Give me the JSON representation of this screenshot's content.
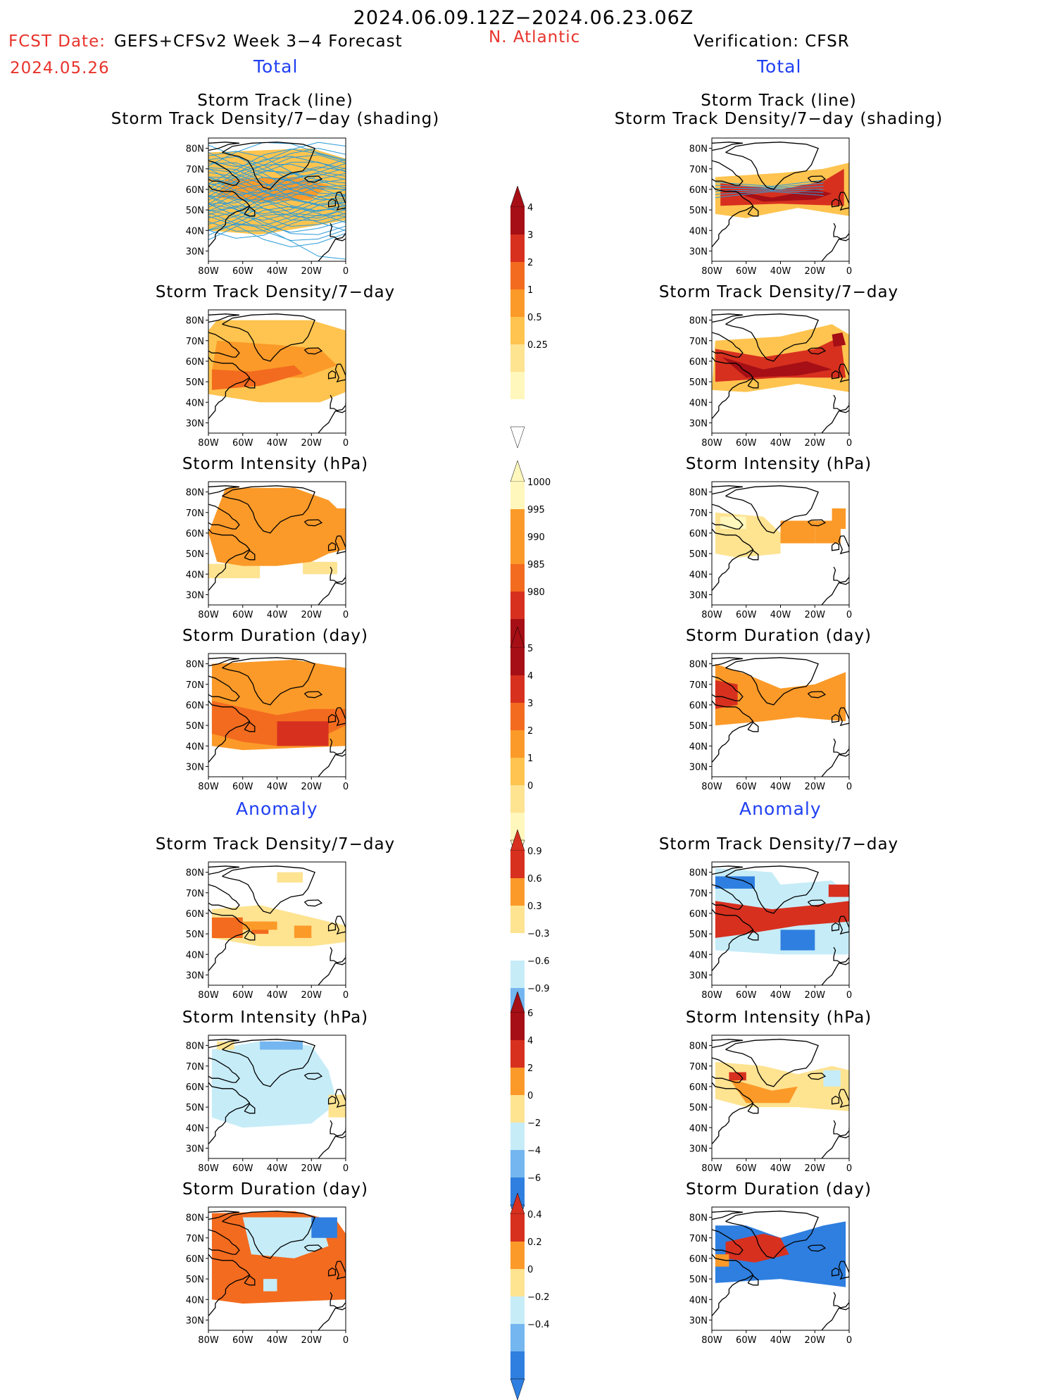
{
  "header": {
    "period": "2024.06.09.12Z−2024.06.23.06Z",
    "fcst_label": "FCST Date:",
    "fcst_model": "GEFS+CFSv2 Week 3−4 Forecast",
    "fcst_date": "2024.05.26",
    "region": "N. Atlantic",
    "verification": "Verification: CFSR",
    "total_left": "Total",
    "total_right": "Total",
    "anomaly_left": "Anomaly",
    "anomaly_right": "Anomaly"
  },
  "panel_titles": {
    "track_line": "Storm Track (line)",
    "track_shading": "Storm Track Density/7−day (shading)",
    "density": "Storm Track Density/7−day",
    "intensity": "Storm Intensity (hPa)",
    "duration": "Storm Duration (day)"
  },
  "axes": {
    "lat_ticks": [
      "80N",
      "70N",
      "60N",
      "50N",
      "40N",
      "30N"
    ],
    "lon_ticks": [
      "80W",
      "60W",
      "40W",
      "20W",
      "0"
    ]
  },
  "colorbars": {
    "density_total": [
      "4",
      "3",
      "2",
      "1",
      "0.5",
      "0.25"
    ],
    "intensity_total": [
      "1000",
      "995",
      "990",
      "985",
      "980"
    ],
    "duration_total": [
      "5",
      "4",
      "3",
      "2",
      "1",
      "0"
    ],
    "density_anom": [
      "0.9",
      "0.6",
      "0.3",
      "−0.3",
      "−0.6",
      "−0.9"
    ],
    "intensity_anom": [
      "6",
      "4",
      "2",
      "0",
      "−2",
      "−4",
      "−6"
    ],
    "duration_anom": [
      "0.4",
      "0.2",
      "0",
      "−0.2",
      "−0.4"
    ]
  },
  "colors": {
    "dark_red": "#a50f15",
    "red": "#d7301f",
    "orange_red": "#f36b1f",
    "orange": "#fb9a29",
    "light_orange": "#fec44f",
    "yellow": "#fee391",
    "pale_yellow": "#fff7bc",
    "light_blue": "#c6ecf8",
    "mid_blue": "#74b6ef",
    "blue": "#2f7fe0",
    "track_line": "#2a9bd8"
  }
}
